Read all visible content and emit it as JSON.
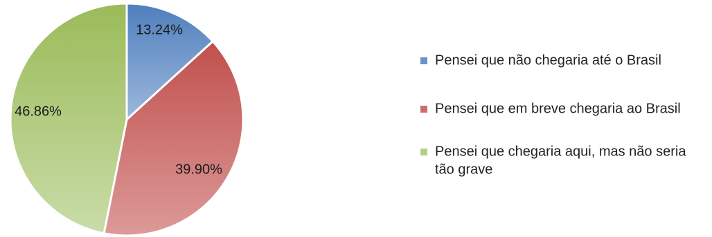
{
  "chart_data": {
    "type": "pie",
    "categories": [
      "Pensei que não chegaria até o Brasil",
      "Pensei que em breve chegaria ao Brasil",
      "Pensei que chegaria aqui, mas não seria tão grave"
    ],
    "values": [
      13.24,
      39.9,
      46.86
    ],
    "data_labels": [
      "13.24%",
      "39.90%",
      "46.86%"
    ],
    "legend_lines": [
      [
        "Pensei que não chegaria até o Brasil"
      ],
      [
        "Pensei que em breve chegaria ao Brasil"
      ],
      [
        "Pensei que chegaria aqui, mas não seria",
        "tão grave"
      ]
    ],
    "colors": [
      {
        "light": "#9db8dc",
        "dark": "#4f7fbd"
      },
      {
        "light": "#dc9a98",
        "dark": "#c0504d"
      },
      {
        "light": "#c9dca8",
        "dark": "#9bbb59"
      }
    ],
    "legend_swatch_colors": [
      "#6b93c9",
      "#cc6e6b",
      "#b4cf83"
    ],
    "legend_position": "right",
    "start_angle": "12 o'clock",
    "direction": "clockwise"
  }
}
